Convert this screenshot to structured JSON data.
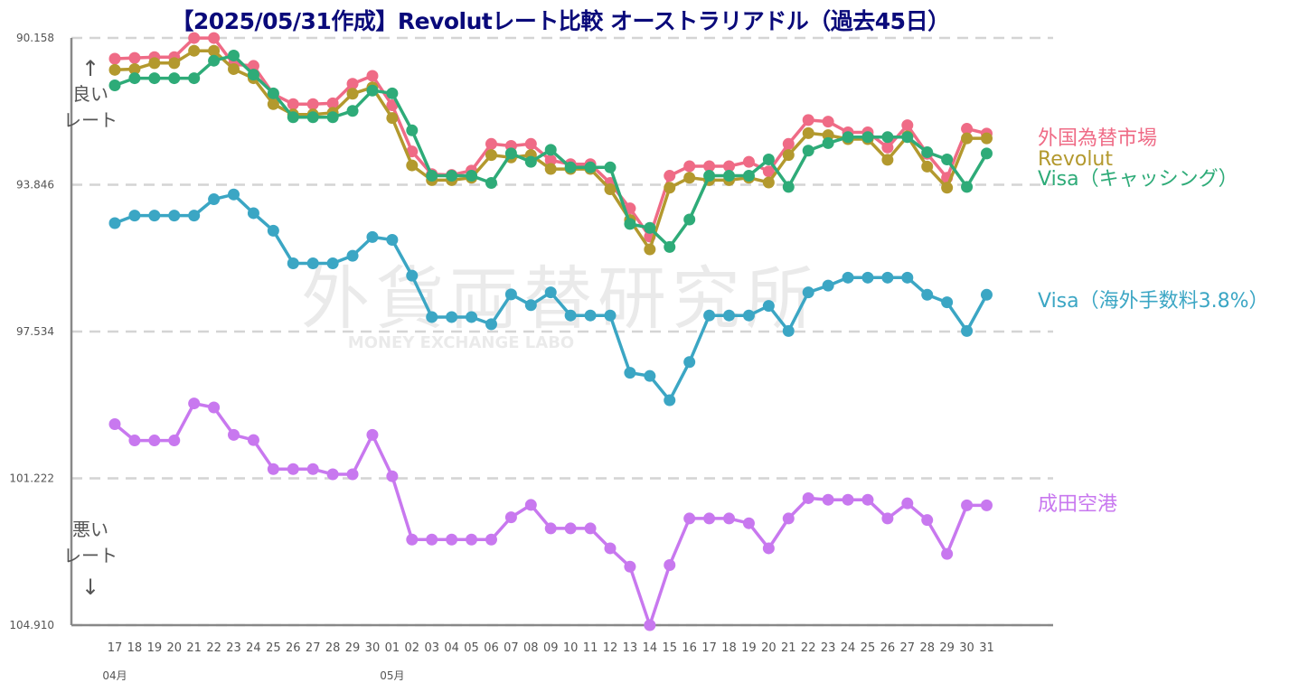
{
  "chart_data": {
    "type": "line",
    "title": "【2025/05/31作成】Revolutレート比較 オーストラリアドル（過去45日）",
    "y_ticks": [
      "90.158",
      "93.846",
      "97.534",
      "101.222",
      "104.910"
    ],
    "ylim": [
      90.158,
      104.91
    ],
    "y_inverted": true,
    "grid": "horizontal dashed",
    "legend_placement": "right, at line ends",
    "categories": [
      "17",
      "18",
      "19",
      "20",
      "21",
      "22",
      "23",
      "24",
      "25",
      "26",
      "27",
      "28",
      "29",
      "30",
      "01",
      "02",
      "03",
      "04",
      "05",
      "06",
      "07",
      "08",
      "09",
      "10",
      "11",
      "12",
      "13",
      "14",
      "15",
      "16",
      "17",
      "18",
      "19",
      "20",
      "21",
      "22",
      "23",
      "24",
      "25",
      "26",
      "27",
      "28",
      "29",
      "30",
      "31"
    ],
    "month_labels": [
      {
        "label": "04月",
        "index": 0
      },
      {
        "label": "05月",
        "index": 14
      }
    ],
    "series": [
      {
        "name": "外国為替市場",
        "color": "#ef6b86",
        "values": [
          90.68,
          90.66,
          90.64,
          90.64,
          90.16,
          90.16,
          90.82,
          90.86,
          91.57,
          91.82,
          91.82,
          91.8,
          91.31,
          91.11,
          91.85,
          93.01,
          93.58,
          93.6,
          93.49,
          92.82,
          92.87,
          92.82,
          93.23,
          93.33,
          93.33,
          93.8,
          94.44,
          95.15,
          93.62,
          93.38,
          93.38,
          93.38,
          93.27,
          93.51,
          92.82,
          92.22,
          92.26,
          92.53,
          92.53,
          92.91,
          92.35,
          93.07,
          93.67,
          92.44,
          92.56
        ]
      },
      {
        "name": "Revolut",
        "color": "#b3992e",
        "values": [
          90.96,
          90.94,
          90.79,
          90.79,
          90.48,
          90.48,
          90.94,
          91.17,
          91.82,
          92.08,
          92.08,
          92.04,
          91.56,
          91.4,
          92.17,
          93.36,
          93.73,
          93.73,
          93.67,
          93.1,
          93.16,
          93.1,
          93.45,
          93.45,
          93.45,
          93.96,
          94.73,
          95.47,
          93.92,
          93.67,
          93.73,
          93.73,
          93.67,
          93.79,
          93.1,
          92.55,
          92.6,
          92.7,
          92.7,
          93.22,
          92.63,
          93.39,
          93.92,
          92.68,
          92.68
        ]
      },
      {
        "name": "Visa（キャッシング）",
        "color": "#2eab78",
        "values": [
          91.35,
          91.17,
          91.17,
          91.17,
          91.17,
          90.73,
          90.6,
          91.08,
          91.55,
          92.15,
          92.15,
          92.15,
          91.99,
          91.48,
          91.55,
          92.48,
          93.62,
          93.62,
          93.62,
          93.8,
          93.06,
          93.27,
          92.97,
          93.41,
          93.41,
          93.41,
          94.83,
          94.93,
          95.41,
          94.72,
          93.62,
          93.62,
          93.62,
          93.21,
          93.9,
          92.99,
          92.8,
          92.65,
          92.65,
          92.65,
          92.65,
          93.03,
          93.21,
          93.9,
          93.06
        ]
      },
      {
        "name": "Visa（海外手数料3.8%）",
        "color": "#3ba6c4",
        "values": [
          94.81,
          94.62,
          94.62,
          94.62,
          94.62,
          94.21,
          94.09,
          94.56,
          95.0,
          95.82,
          95.82,
          95.82,
          95.63,
          95.16,
          95.23,
          96.13,
          97.17,
          97.17,
          97.17,
          97.35,
          96.6,
          96.87,
          96.55,
          97.13,
          97.13,
          97.13,
          98.57,
          98.65,
          99.26,
          98.3,
          97.13,
          97.13,
          97.13,
          96.89,
          97.52,
          96.55,
          96.38,
          96.18,
          96.18,
          96.18,
          96.18,
          96.61,
          96.8,
          97.52,
          96.61
        ]
      },
      {
        "name": "成田空港",
        "color": "#c878ef",
        "values": [
          99.86,
          100.27,
          100.27,
          100.27,
          99.34,
          99.44,
          100.13,
          100.26,
          100.99,
          100.99,
          100.99,
          101.12,
          101.12,
          100.13,
          101.17,
          102.76,
          102.76,
          102.76,
          102.76,
          102.76,
          102.2,
          101.89,
          102.48,
          102.48,
          102.48,
          102.98,
          103.44,
          104.91,
          103.4,
          102.23,
          102.23,
          102.23,
          102.35,
          102.98,
          102.23,
          101.72,
          101.76,
          101.76,
          101.76,
          102.23,
          101.85,
          102.27,
          103.12,
          101.9,
          101.9
        ]
      }
    ]
  },
  "annotations": {
    "good": "良い\nレート",
    "bad": "悪い\nレート",
    "up_arrow": "↑",
    "down_arrow": "↓"
  },
  "watermark": {
    "main": "外貨両替研究所",
    "sub": "MONEY EXCHANGE LABO"
  }
}
